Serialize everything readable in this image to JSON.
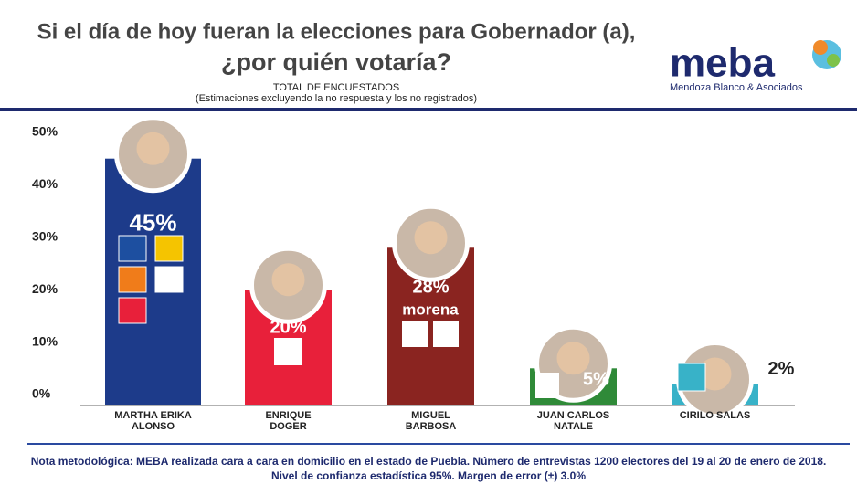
{
  "chart_data": {
    "type": "bar",
    "title": "Si el día de hoy fueran la elecciones para Gobernador (a),",
    "title_line2": "¿por quién votaría?",
    "subtitle": "TOTAL DE ENCUESTADOS",
    "subtitle_note": "(Estimaciones excluyendo la no respuesta y los no registrados)",
    "brand": "meba",
    "brand_tagline": "Mendoza Blanco & Asociados",
    "categories": [
      "MARTHA ERIKA ALONSO",
      "ENRIQUE DOGER",
      "MIGUEL BARBOSA",
      "JUAN CARLOS NATALE",
      "CIRILO SALAS"
    ],
    "values": [
      45,
      20,
      28,
      5,
      2
    ],
    "value_labels": [
      "45%",
      "20%",
      "28%",
      "5%",
      "2%"
    ],
    "party_label": "morena",
    "colors": [
      "#1d3b8a",
      "#e8203a",
      "#8a2420",
      "#2f8a38",
      "#38b2c8"
    ],
    "ylim": [
      0,
      50
    ],
    "yticks": [
      {
        "value": 0,
        "label": "0%"
      },
      {
        "value": 10,
        "label": "10%"
      },
      {
        "value": 20,
        "label": "20%"
      },
      {
        "value": 30,
        "label": "30%"
      },
      {
        "value": 40,
        "label": "40%"
      },
      {
        "value": 50,
        "label": "50%"
      }
    ],
    "footnote": "Nota metodológica:  MEBA realizada cara a cara en domicilio en el estado de Puebla.  Número de entrevistas 1200 electores del 19 al 20 de enero de 2018.",
    "footnote_line2": "Nivel de confianza estadística 95%. Margen de error  (±) 3.0%"
  }
}
